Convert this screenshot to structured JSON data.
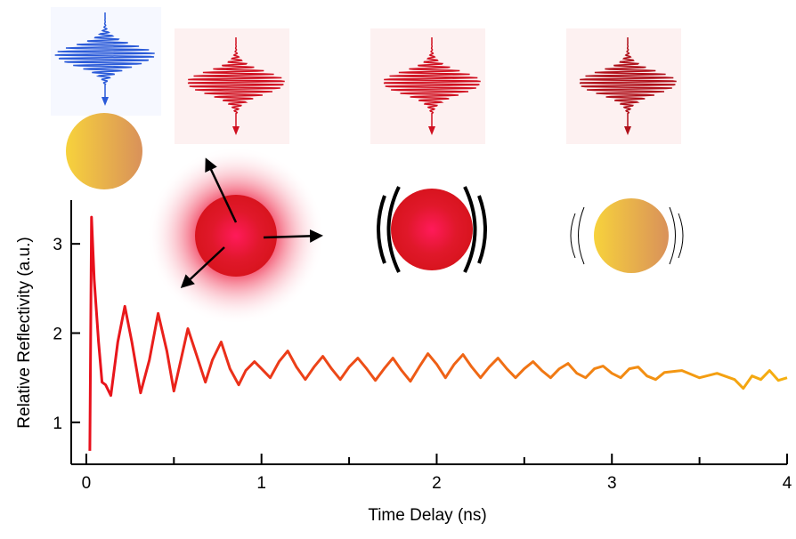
{
  "chart_data": {
    "type": "line",
    "x_label": "Time Delay (ns)",
    "y_label": "Relative Reflectivity (a.u.)",
    "x": [
      0.02,
      0.03,
      0.045,
      0.07,
      0.09,
      0.11,
      0.14,
      0.18,
      0.22,
      0.26,
      0.31,
      0.36,
      0.41,
      0.46,
      0.5,
      0.54,
      0.58,
      0.63,
      0.68,
      0.72,
      0.77,
      0.82,
      0.87,
      0.91,
      0.96,
      1.0,
      1.05,
      1.1,
      1.15,
      1.2,
      1.25,
      1.3,
      1.35,
      1.4,
      1.45,
      1.5,
      1.55,
      1.6,
      1.65,
      1.7,
      1.75,
      1.8,
      1.85,
      1.9,
      1.95,
      2.0,
      2.05,
      2.1,
      2.15,
      2.2,
      2.25,
      2.3,
      2.35,
      2.4,
      2.45,
      2.5,
      2.55,
      2.6,
      2.65,
      2.7,
      2.75,
      2.8,
      2.85,
      2.9,
      2.95,
      3.0,
      3.05,
      3.1,
      3.15,
      3.2,
      3.25,
      3.3,
      3.4,
      3.5,
      3.6,
      3.7,
      3.75,
      3.8,
      3.85,
      3.9,
      3.95,
      4.0
    ],
    "series": [
      {
        "color_start": "#e8101c",
        "color_end": "#f5b010",
        "values": [
          0.68,
          3.3,
          2.6,
          1.9,
          1.45,
          1.42,
          1.3,
          1.9,
          2.3,
          1.9,
          1.33,
          1.7,
          2.22,
          1.8,
          1.35,
          1.7,
          2.05,
          1.75,
          1.45,
          1.7,
          1.9,
          1.6,
          1.42,
          1.58,
          1.68,
          1.6,
          1.5,
          1.68,
          1.8,
          1.62,
          1.48,
          1.62,
          1.74,
          1.6,
          1.48,
          1.62,
          1.72,
          1.6,
          1.47,
          1.6,
          1.72,
          1.58,
          1.46,
          1.62,
          1.77,
          1.65,
          1.5,
          1.65,
          1.76,
          1.62,
          1.5,
          1.62,
          1.72,
          1.6,
          1.5,
          1.6,
          1.68,
          1.58,
          1.5,
          1.6,
          1.66,
          1.55,
          1.5,
          1.6,
          1.63,
          1.55,
          1.5,
          1.6,
          1.62,
          1.52,
          1.48,
          1.56,
          1.58,
          1.5,
          1.55,
          1.48,
          1.38,
          1.52,
          1.48,
          1.58,
          1.47,
          1.5
        ]
      }
    ],
    "xlim": [
      -0.086,
      4.0
    ],
    "ylim": [
      0.53,
      3.49
    ],
    "xticks": [
      0,
      1,
      2,
      3,
      4
    ],
    "minor_xticks": [
      0.5,
      1.5,
      2.5,
      3.5
    ],
    "yticks": [
      1,
      2,
      3
    ]
  }
}
